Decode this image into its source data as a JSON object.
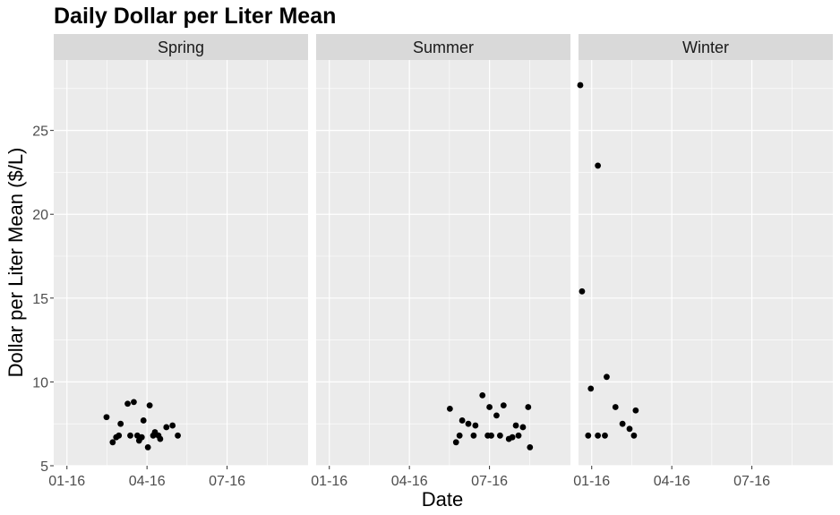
{
  "chart_data": {
    "type": "scatter",
    "title": "Daily Dollar per Liter Mean",
    "xlabel": "Date",
    "ylabel": "Dollar per Liter Mean ($/L)",
    "ylim": [
      5,
      29.2
    ],
    "xlim": [
      "2016-01-01",
      "2016-10-16"
    ],
    "x_ticks": [
      "2016-01-16",
      "2016-04-16",
      "2016-07-16"
    ],
    "x_tick_labels": [
      "01-16",
      "04-16",
      "07-16"
    ],
    "y_ticks": [
      5,
      10,
      15,
      20,
      25
    ],
    "y_tick_labels": [
      "5",
      "10",
      "15",
      "20",
      "25"
    ],
    "grid": true,
    "facets": [
      {
        "name": "Spring",
        "points": [
          {
            "x": "2016-03-01",
            "y": 7.9
          },
          {
            "x": "2016-03-08",
            "y": 6.4
          },
          {
            "x": "2016-03-12",
            "y": 6.7
          },
          {
            "x": "2016-03-15",
            "y": 6.8
          },
          {
            "x": "2016-03-17",
            "y": 7.5
          },
          {
            "x": "2016-03-25",
            "y": 8.7
          },
          {
            "x": "2016-03-28",
            "y": 6.8
          },
          {
            "x": "2016-04-01",
            "y": 8.8
          },
          {
            "x": "2016-04-05",
            "y": 6.8
          },
          {
            "x": "2016-04-07",
            "y": 6.5
          },
          {
            "x": "2016-04-10",
            "y": 6.7
          },
          {
            "x": "2016-04-12",
            "y": 7.7
          },
          {
            "x": "2016-04-17",
            "y": 6.1
          },
          {
            "x": "2016-04-19",
            "y": 8.6
          },
          {
            "x": "2016-04-23",
            "y": 6.8
          },
          {
            "x": "2016-04-25",
            "y": 7.0
          },
          {
            "x": "2016-04-29",
            "y": 6.8
          },
          {
            "x": "2016-05-01",
            "y": 6.6
          },
          {
            "x": "2016-05-08",
            "y": 7.3
          },
          {
            "x": "2016-05-15",
            "y": 7.4
          },
          {
            "x": "2016-05-21",
            "y": 6.8
          }
        ]
      },
      {
        "name": "Summer",
        "points": [
          {
            "x": "2016-06-01",
            "y": 8.4
          },
          {
            "x": "2016-06-08",
            "y": 6.4
          },
          {
            "x": "2016-06-12",
            "y": 6.8
          },
          {
            "x": "2016-06-15",
            "y": 7.7
          },
          {
            "x": "2016-06-22",
            "y": 7.5
          },
          {
            "x": "2016-06-28",
            "y": 6.8
          },
          {
            "x": "2016-06-30",
            "y": 7.4
          },
          {
            "x": "2016-07-08",
            "y": 9.2
          },
          {
            "x": "2016-07-14",
            "y": 6.8
          },
          {
            "x": "2016-07-16",
            "y": 8.5
          },
          {
            "x": "2016-07-18",
            "y": 6.8
          },
          {
            "x": "2016-07-24",
            "y": 8.0
          },
          {
            "x": "2016-07-28",
            "y": 6.8
          },
          {
            "x": "2016-08-01",
            "y": 8.6
          },
          {
            "x": "2016-08-07",
            "y": 6.6
          },
          {
            "x": "2016-08-11",
            "y": 6.7
          },
          {
            "x": "2016-08-15",
            "y": 7.4
          },
          {
            "x": "2016-08-18",
            "y": 6.8
          },
          {
            "x": "2016-08-23",
            "y": 7.3
          },
          {
            "x": "2016-08-29",
            "y": 8.5
          },
          {
            "x": "2016-08-31",
            "y": 6.1
          }
        ]
      },
      {
        "name": "Winter",
        "points": [
          {
            "x": "2016-01-03",
            "y": 27.7
          },
          {
            "x": "2016-01-05",
            "y": 15.4
          },
          {
            "x": "2016-01-12",
            "y": 6.8
          },
          {
            "x": "2016-01-15",
            "y": 9.6
          },
          {
            "x": "2016-01-23",
            "y": 22.9
          },
          {
            "x": "2016-01-23",
            "y": 6.8
          },
          {
            "x": "2016-01-31",
            "y": 6.8
          },
          {
            "x": "2016-02-02",
            "y": 10.3
          },
          {
            "x": "2016-02-12",
            "y": 8.5
          },
          {
            "x": "2016-02-20",
            "y": 7.5
          },
          {
            "x": "2016-02-28",
            "y": 7.2
          },
          {
            "x": "2016-03-04",
            "y": 6.8
          },
          {
            "x": "2016-03-06",
            "y": 8.3
          }
        ]
      }
    ]
  }
}
